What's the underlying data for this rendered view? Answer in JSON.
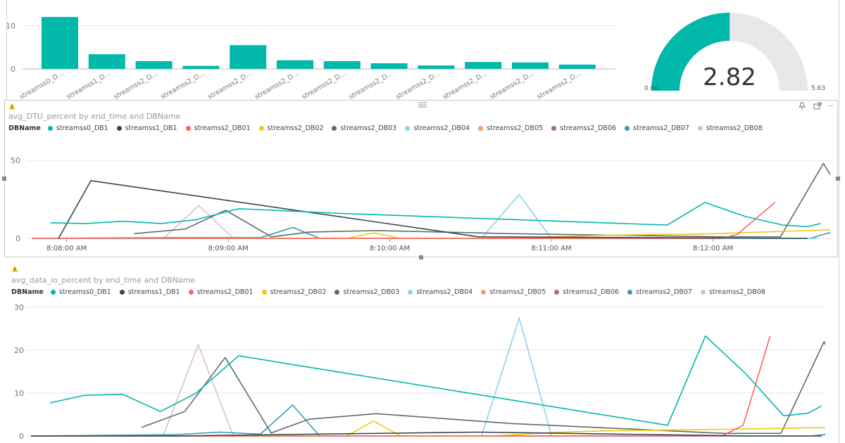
{
  "colors": {
    "teal": "#01B8AA"
  },
  "series": [
    {
      "name": "streamss0_DB1",
      "color": "#01B8AA"
    },
    {
      "name": "streamss1_DB1",
      "color": "#374649"
    },
    {
      "name": "streamss2_DB01",
      "color": "#FD625E"
    },
    {
      "name": "streamss2_DB02",
      "color": "#F2C80F"
    },
    {
      "name": "streamss2_DB03",
      "color": "#5F6B6D"
    },
    {
      "name": "streamss2_DB04",
      "color": "#8AD4EB"
    },
    {
      "name": "streamss2_DB05",
      "color": "#FE9666"
    },
    {
      "name": "streamss2_DB06",
      "color": "#A66999"
    },
    {
      "name": "streamss2_DB07",
      "color": "#3599B8"
    },
    {
      "name": "streamss2_DB08",
      "color": "#DFBFBF"
    }
  ],
  "legend_title": "DBName",
  "icons": {
    "warning": "warning-icon",
    "pin": "pin-icon",
    "focus": "focus-mode-icon",
    "more": "more-options-icon",
    "drag": "drag-handle-icon"
  },
  "chart_data": [
    {
      "type": "bar",
      "categories": [
        "streamss0_D...",
        "streamss1_D...",
        "streamss2_D...",
        "streamss2_D...",
        "streamss2_D...",
        "streamss2_D...",
        "streamss2_D...",
        "streamss2_D...",
        "streamss2_D...",
        "streamss2_D...",
        "streamss2_D...",
        "streamss2_D..."
      ],
      "values": [
        12.0,
        3.4,
        1.8,
        0.7,
        5.5,
        2.0,
        1.8,
        1.3,
        0.8,
        1.6,
        1.5,
        1.0
      ],
      "yticks": [
        "0",
        "10"
      ],
      "ylim": [
        0,
        13
      ]
    },
    {
      "type": "gauge",
      "value": 2.82,
      "value_label": "2.82",
      "min": 0,
      "max": 5.63,
      "min_label": "0.00",
      "max_label": "5.63"
    },
    {
      "type": "line",
      "title": "avg_DTU_percent by end_time and DBName",
      "xticks": [
        {
          "label": "8:08:00 AM",
          "t": 10
        },
        {
          "label": "8:09:00 AM",
          "t": 70
        },
        {
          "label": "8:10:00 AM",
          "t": 130
        },
        {
          "label": "8:11:00 AM",
          "t": 190
        },
        {
          "label": "8:12:00 AM",
          "t": 250
        }
      ],
      "xlim": [
        -3,
        293
      ],
      "yticks": [
        "0",
        "50"
      ],
      "ylim": [
        0,
        50
      ],
      "series": [
        {
          "name": "streamss0_DB1",
          "points": [
            [
              4,
              10
            ],
            [
              17,
              9.5
            ],
            [
              31,
              11
            ],
            [
              45,
              9.5
            ],
            [
              58,
              12
            ],
            [
              74,
              19
            ],
            [
              112,
              16
            ],
            [
              233,
              8.5
            ],
            [
              247,
              23
            ],
            [
              262,
              14
            ],
            [
              276,
              8.5
            ],
            [
              285,
              7.5
            ],
            [
              290,
              9.5
            ]
          ]
        },
        {
          "name": "streamss1_DB1",
          "points": [
            [
              7,
              0
            ],
            [
              19,
              37
            ],
            [
              163,
              1
            ],
            [
              285,
              0
            ]
          ]
        },
        {
          "name": "streamss2_DB01",
          "points": [
            [
              -3,
              0
            ],
            [
              253,
              0
            ],
            [
              259,
              2.5
            ],
            [
              273,
              23
            ]
          ]
        },
        {
          "name": "streamss2_DB02",
          "points": [
            [
              52,
              0
            ],
            [
              114,
              0
            ],
            [
              124,
              3.5
            ],
            [
              134,
              0
            ],
            [
              168,
              0
            ],
            [
              190,
              1
            ],
            [
              210,
              2
            ],
            [
              250,
              3
            ],
            [
              285,
              5
            ],
            [
              300,
              6
            ],
            [
              305,
              0
            ]
          ]
        },
        {
          "name": "streamss2_DB03",
          "points": [
            [
              35,
              3
            ],
            [
              54,
              6
            ],
            [
              69,
              18
            ],
            [
              86,
              1
            ],
            [
              100,
              4
            ],
            [
              125,
              5
            ],
            [
              175,
              3
            ],
            [
              254,
              1
            ],
            [
              275,
              1
            ],
            [
              291,
              48
            ],
            [
              306,
              5
            ]
          ]
        },
        {
          "name": "streamss2_DB04",
          "points": [
            [
              -3,
              0
            ],
            [
              164,
              0
            ],
            [
              178,
              28
            ],
            [
              190,
              0
            ],
            [
              289,
              0
            ]
          ]
        },
        {
          "name": "streamss2_DB05",
          "points": [
            [
              -3,
              0
            ],
            [
              250,
              0
            ]
          ]
        },
        {
          "name": "streamss2_DB06",
          "points": [
            [
              -3,
              0
            ],
            [
              250,
              0
            ]
          ]
        },
        {
          "name": "streamss2_DB07",
          "points": [
            [
              -3,
              0
            ],
            [
              50,
              0.5
            ],
            [
              67,
              0.5
            ],
            [
              82,
              0.5
            ],
            [
              94,
              7
            ],
            [
              104,
              0
            ],
            [
              286,
              0
            ],
            [
              296,
              5
            ],
            [
              310,
              0
            ]
          ]
        },
        {
          "name": "streamss2_DB08",
          "points": [
            [
              -3,
              0
            ],
            [
              46,
              0
            ],
            [
              59,
              21
            ],
            [
              72,
              0
            ],
            [
              286,
              0
            ]
          ]
        }
      ]
    },
    {
      "type": "line",
      "title": "avg_data_io_percent by end_time and DBName",
      "xlim": [
        -3,
        293
      ],
      "yticks": [
        "0",
        "10",
        "20",
        "30"
      ],
      "ylim": [
        0,
        30
      ],
      "series": [
        {
          "name": "streamss0_DB1",
          "points": [
            [
              4,
              7.7
            ],
            [
              17,
              9.5
            ],
            [
              31,
              9.7
            ],
            [
              45,
              5.7
            ],
            [
              58,
              9.9
            ],
            [
              74,
              18.7
            ],
            [
              112,
              14.8
            ],
            [
              233,
              2.5
            ],
            [
              247,
              23.3
            ],
            [
              262,
              14.5
            ],
            [
              276,
              4.7
            ],
            [
              285,
              5.3
            ],
            [
              290,
              7
            ]
          ]
        },
        {
          "name": "streamss1_DB1",
          "points": [
            [
              -3,
              0
            ],
            [
              50,
              0
            ],
            [
              112,
              0.5
            ],
            [
              163,
              0.9
            ],
            [
              263,
              0
            ],
            [
              290,
              0
            ]
          ]
        },
        {
          "name": "streamss2_DB01",
          "points": [
            [
              -3,
              0
            ],
            [
              253,
              0
            ],
            [
              261,
              2.5
            ],
            [
              271,
              23.3
            ]
          ]
        },
        {
          "name": "streamss2_DB02",
          "points": [
            [
              52,
              0
            ],
            [
              114,
              0
            ],
            [
              124,
              3.5
            ],
            [
              134,
              0
            ],
            [
              168,
              0
            ],
            [
              190,
              0.8
            ],
            [
              210,
              1.2
            ],
            [
              250,
              1.5
            ],
            [
              285,
              1.9
            ],
            [
              300,
              2
            ],
            [
              305,
              0
            ]
          ]
        },
        {
          "name": "streamss2_DB03",
          "points": [
            [
              38,
              2
            ],
            [
              54,
              5.7
            ],
            [
              69,
              18.3
            ],
            [
              86,
              0.7
            ],
            [
              100,
              3.9
            ],
            [
              125,
              5.2
            ],
            [
              175,
              2.9
            ],
            [
              254,
              0.6
            ],
            [
              275,
              0.6
            ],
            [
              291,
              22
            ],
            [
              306,
              0.4
            ]
          ]
        },
        {
          "name": "streamss2_DB04",
          "points": [
            [
              -3,
              0
            ],
            [
              164,
              0
            ],
            [
              178,
              27.5
            ],
            [
              190,
              0
            ],
            [
              289,
              0
            ]
          ]
        },
        {
          "name": "streamss2_DB05",
          "points": [
            [
              -3,
              0
            ],
            [
              250,
              0
            ]
          ]
        },
        {
          "name": "streamss2_DB06",
          "points": [
            [
              -3,
              0
            ],
            [
              250,
              0
            ]
          ]
        },
        {
          "name": "streamss2_DB07",
          "points": [
            [
              -3,
              0
            ],
            [
              50,
              0.3
            ],
            [
              67,
              0.9
            ],
            [
              82,
              0.4
            ],
            [
              94,
              7.2
            ],
            [
              104,
              0
            ],
            [
              286,
              0
            ],
            [
              296,
              0.6
            ],
            [
              310,
              0
            ]
          ]
        },
        {
          "name": "streamss2_DB08",
          "points": [
            [
              -3,
              0
            ],
            [
              46,
              0
            ],
            [
              59,
              21.3
            ],
            [
              72,
              0
            ],
            [
              286,
              0
            ]
          ]
        }
      ]
    }
  ]
}
